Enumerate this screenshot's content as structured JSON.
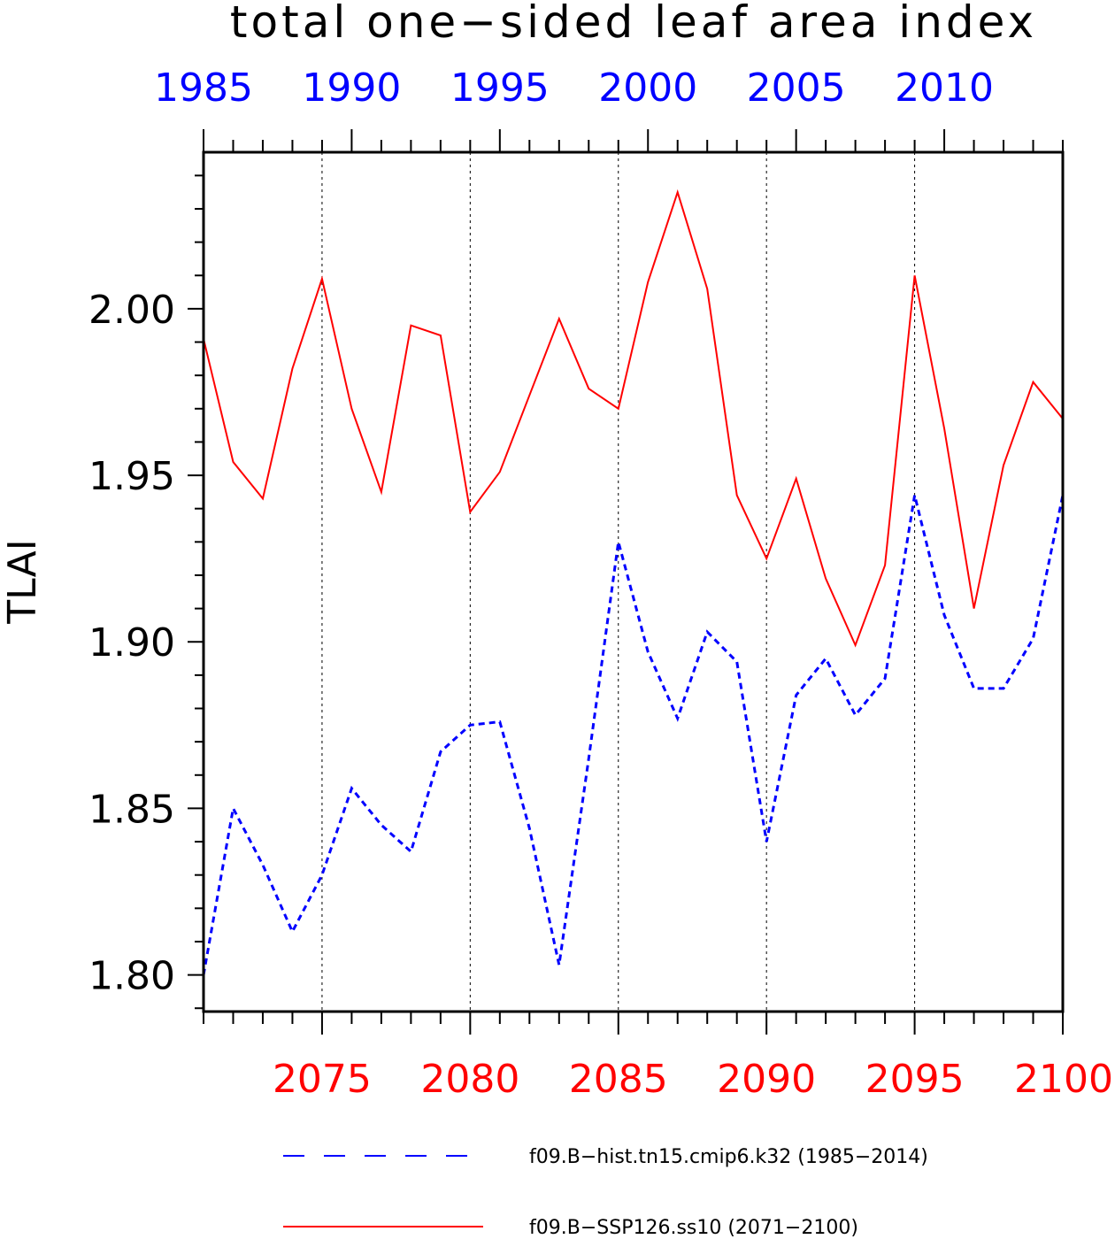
{
  "chart_data": {
    "type": "line",
    "title": "total one−sided leaf area index",
    "ylabel": "TLAI",
    "ylim": [
      1.789,
      2.047
    ],
    "y_ticks": [
      1.8,
      1.85,
      1.9,
      1.95,
      2.0
    ],
    "y_tick_labels": [
      "1.80",
      "1.85",
      "1.90",
      "1.95",
      "2.00"
    ],
    "x_top": {
      "range": [
        1985,
        2014
      ],
      "tick_labels": [
        "1985",
        "1990",
        "1995",
        "2000",
        "2005",
        "2010"
      ],
      "ticks": [
        1985,
        1990,
        1995,
        2000,
        2005,
        2010
      ],
      "color": "#0000ff"
    },
    "x_bottom": {
      "range": [
        2071,
        2100
      ],
      "tick_labels": [
        "2075",
        "2080",
        "2085",
        "2090",
        "2095",
        "2100"
      ],
      "ticks": [
        2075,
        2080,
        2085,
        2090,
        2095,
        2100
      ],
      "color": "#ff0000"
    },
    "grid": "dotted vertical lines at 5-year ticks",
    "series": [
      {
        "name": "f09.B−hist.tn15.cmip6.k32 (1985−2014)",
        "axis": "top",
        "color": "#0000ff",
        "style": "dashed",
        "x": [
          1985,
          1986,
          1987,
          1988,
          1989,
          1990,
          1991,
          1992,
          1993,
          1994,
          1995,
          1996,
          1997,
          1998,
          1999,
          2000,
          2001,
          2002,
          2003,
          2004,
          2005,
          2006,
          2007,
          2008,
          2009,
          2010,
          2011,
          2012,
          2013,
          2014
        ],
        "values": [
          1.8,
          1.85,
          1.833,
          1.813,
          1.83,
          1.856,
          1.845,
          1.837,
          1.867,
          1.875,
          1.876,
          1.844,
          1.803,
          1.865,
          1.93,
          1.897,
          1.877,
          1.903,
          1.894,
          1.84,
          1.884,
          1.895,
          1.878,
          1.889,
          1.944,
          1.908,
          1.886,
          1.886,
          1.901,
          1.944
        ]
      },
      {
        "name": "f09.B−SSP126.ss10 (2071−2100)",
        "axis": "bottom",
        "color": "#ff0000",
        "style": "solid",
        "x": [
          2071,
          2072,
          2073,
          2074,
          2075,
          2076,
          2077,
          2078,
          2079,
          2080,
          2081,
          2082,
          2083,
          2084,
          2085,
          2086,
          2087,
          2088,
          2089,
          2090,
          2091,
          2092,
          2093,
          2094,
          2095,
          2096,
          2097,
          2098,
          2099,
          2100
        ],
        "values": [
          1.991,
          1.954,
          1.943,
          1.982,
          2.009,
          1.97,
          1.945,
          1.995,
          1.992,
          1.939,
          1.951,
          1.974,
          1.997,
          1.976,
          1.97,
          2.008,
          2.035,
          2.006,
          1.944,
          1.925,
          1.949,
          1.919,
          1.899,
          1.923,
          2.01,
          1.964,
          1.91,
          1.953,
          1.978,
          1.967
        ]
      }
    ],
    "legend": {
      "placement": "bottom",
      "entries": [
        "f09.B−hist.tn15.cmip6.k32 (1985−2014)",
        "f09.B−SSP126.ss10 (2071−2100)"
      ]
    }
  }
}
